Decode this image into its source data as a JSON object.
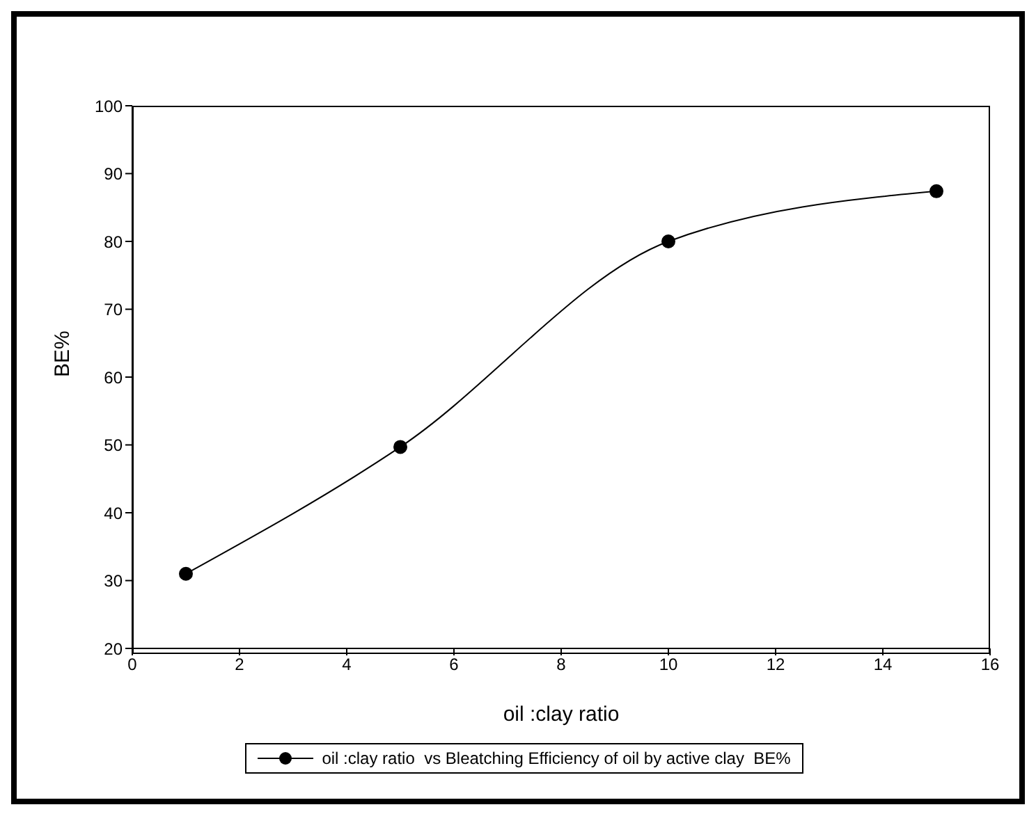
{
  "chart_data": {
    "type": "line",
    "xlabel": "oil :clay ratio",
    "ylabel": "BE%",
    "x": [
      1,
      5,
      10,
      15
    ],
    "series": [
      {
        "name": "oil :clay ratio  vs Bleatching Efficiency of oil by active clay  BE%",
        "color": "#000000",
        "values": [
          31,
          49.7,
          80,
          87.4
        ]
      }
    ],
    "xlim": [
      0,
      16
    ],
    "xticks": [
      0,
      2,
      4,
      6,
      8,
      10,
      12,
      14,
      16
    ],
    "ylim": [
      20,
      100
    ],
    "yticks": [
      20,
      30,
      40,
      50,
      60,
      70,
      80,
      90,
      100
    ],
    "grid": false,
    "legend": "bottom",
    "marker": "circle",
    "line_style": "solid"
  }
}
